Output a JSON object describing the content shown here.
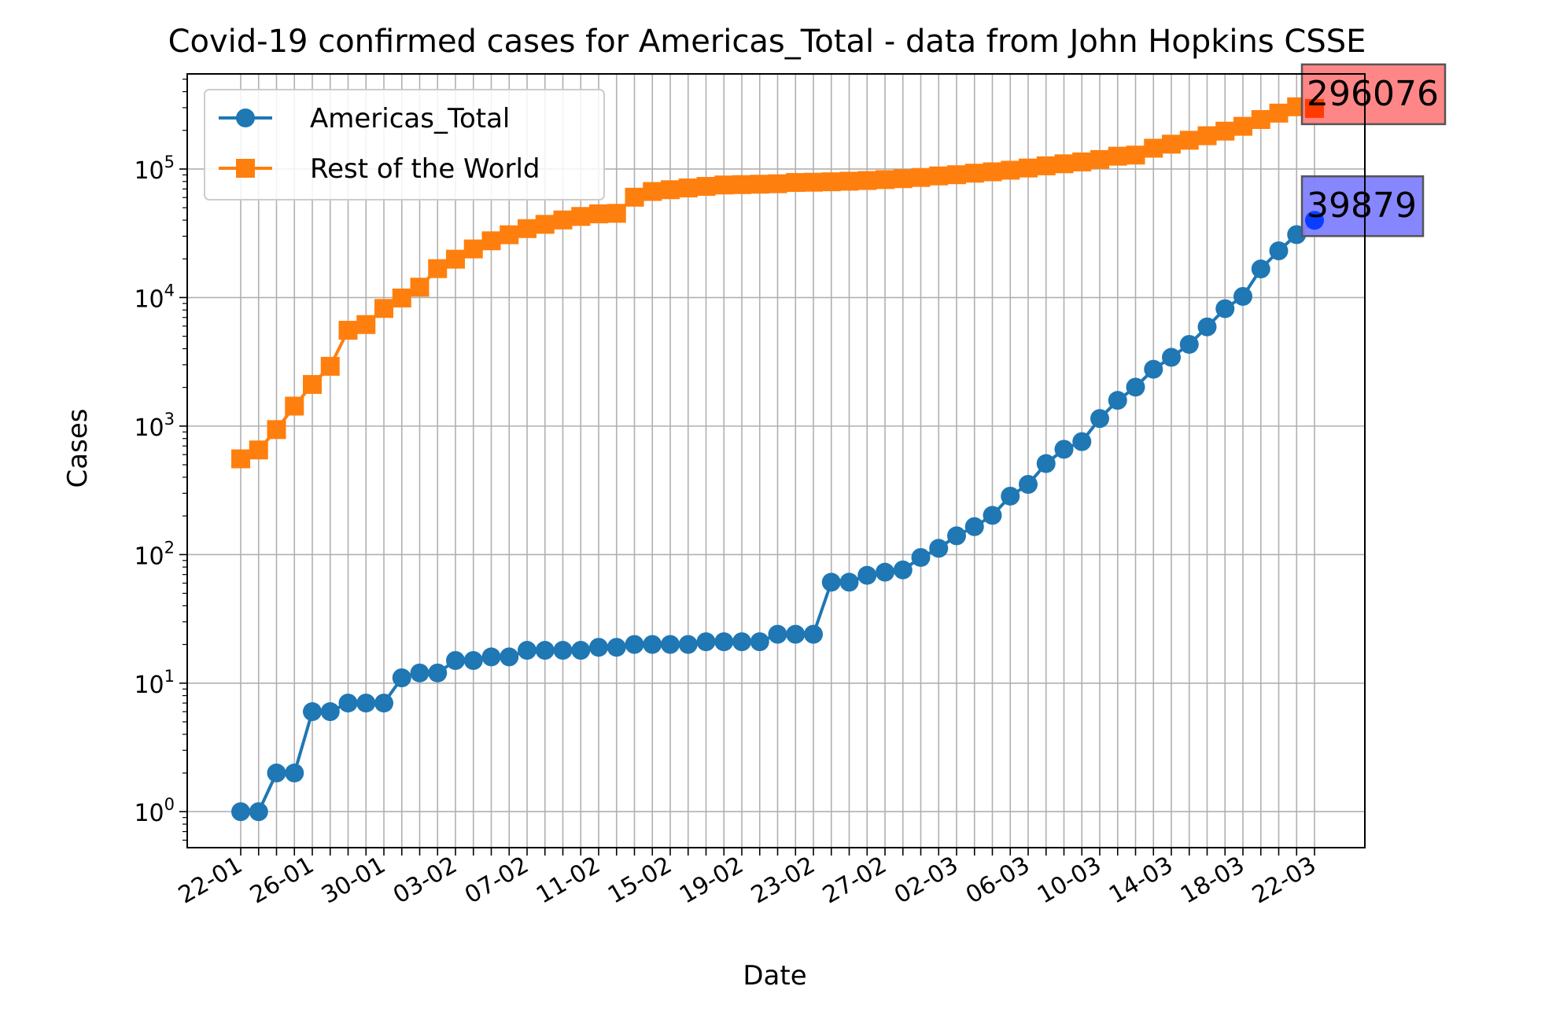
{
  "chart_data": {
    "type": "line",
    "title": "Covid-19 confirmed cases for Americas_Total - data from John Hopkins CSSE",
    "xlabel": "Date",
    "ylabel": "Cases",
    "yscale": "log",
    "ylim_exponent": [
      -0.28,
      5.74
    ],
    "ytick_exponents": [
      0,
      1,
      2,
      3,
      4,
      5
    ],
    "grid": true,
    "legend_placement": "upper-left",
    "dates": [
      "22-01",
      "23-01",
      "24-01",
      "25-01",
      "26-01",
      "27-01",
      "28-01",
      "29-01",
      "30-01",
      "31-01",
      "01-02",
      "02-02",
      "03-02",
      "04-02",
      "05-02",
      "06-02",
      "07-02",
      "08-02",
      "09-02",
      "10-02",
      "11-02",
      "12-02",
      "13-02",
      "14-02",
      "15-02",
      "16-02",
      "17-02",
      "18-02",
      "19-02",
      "20-02",
      "21-02",
      "22-02",
      "23-02",
      "24-02",
      "25-02",
      "26-02",
      "27-02",
      "28-02",
      "29-02",
      "01-03",
      "02-03",
      "03-03",
      "04-03",
      "05-03",
      "06-03",
      "07-03",
      "08-03",
      "09-03",
      "10-03",
      "11-03",
      "12-03",
      "13-03",
      "14-03",
      "15-03",
      "16-03",
      "17-03",
      "18-03",
      "19-03",
      "20-03",
      "21-03",
      "22-03"
    ],
    "tick_labels": [
      "22-01",
      "26-01",
      "30-01",
      "03-02",
      "07-02",
      "11-02",
      "15-02",
      "19-02",
      "23-02",
      "27-02",
      "02-03",
      "06-03",
      "10-03",
      "14-03",
      "18-03",
      "22-03"
    ],
    "series": [
      {
        "name": "Americas_Total",
        "color": "#1f77b4",
        "marker": "circle",
        "values": [
          1,
          1,
          2,
          2,
          6,
          6,
          7,
          7,
          7,
          11,
          12,
          12,
          15,
          15,
          16,
          16,
          18,
          18,
          18,
          18,
          19,
          19,
          20,
          20,
          20,
          20,
          21,
          21,
          21,
          21,
          24,
          24,
          24,
          61,
          61,
          69,
          73,
          76,
          95,
          112,
          140,
          165,
          202,
          285,
          352,
          511,
          660,
          757,
          1145,
          1585,
          2009,
          2768,
          3427,
          4323,
          5914,
          8191,
          10209,
          16693,
          23090,
          30880,
          39879
        ],
        "annotation": "39879",
        "annotation_color": "#8080ff"
      },
      {
        "name": "Rest of the World",
        "color": "#ff7f0e",
        "marker": "square",
        "values": [
          556,
          652,
          939,
          1430,
          2108,
          2918,
          5568,
          6165,
          8225,
          9924,
          12038,
          16785,
          19880,
          23892,
          27635,
          30794,
          34391,
          37120,
          40150,
          42762,
          44802,
          45220,
          60368,
          66885,
          69030,
          71224,
          73258,
          75136,
          75639,
          76190,
          76819,
          78572,
          78958,
          79561,
          80400,
          81377,
          82740,
          84114,
          85991,
          88372,
          90305,
          92840,
          95120,
          97886,
          101800,
          105836,
          109821,
          113590,
          118582,
          125865,
          128343,
          145205,
          156099,
          167454,
          181546,
          197142,
          214910,
          242708,
          272166,
          304979,
          296076
        ],
        "annotation": "296076",
        "annotation_color": "#ff8080"
      }
    ]
  }
}
